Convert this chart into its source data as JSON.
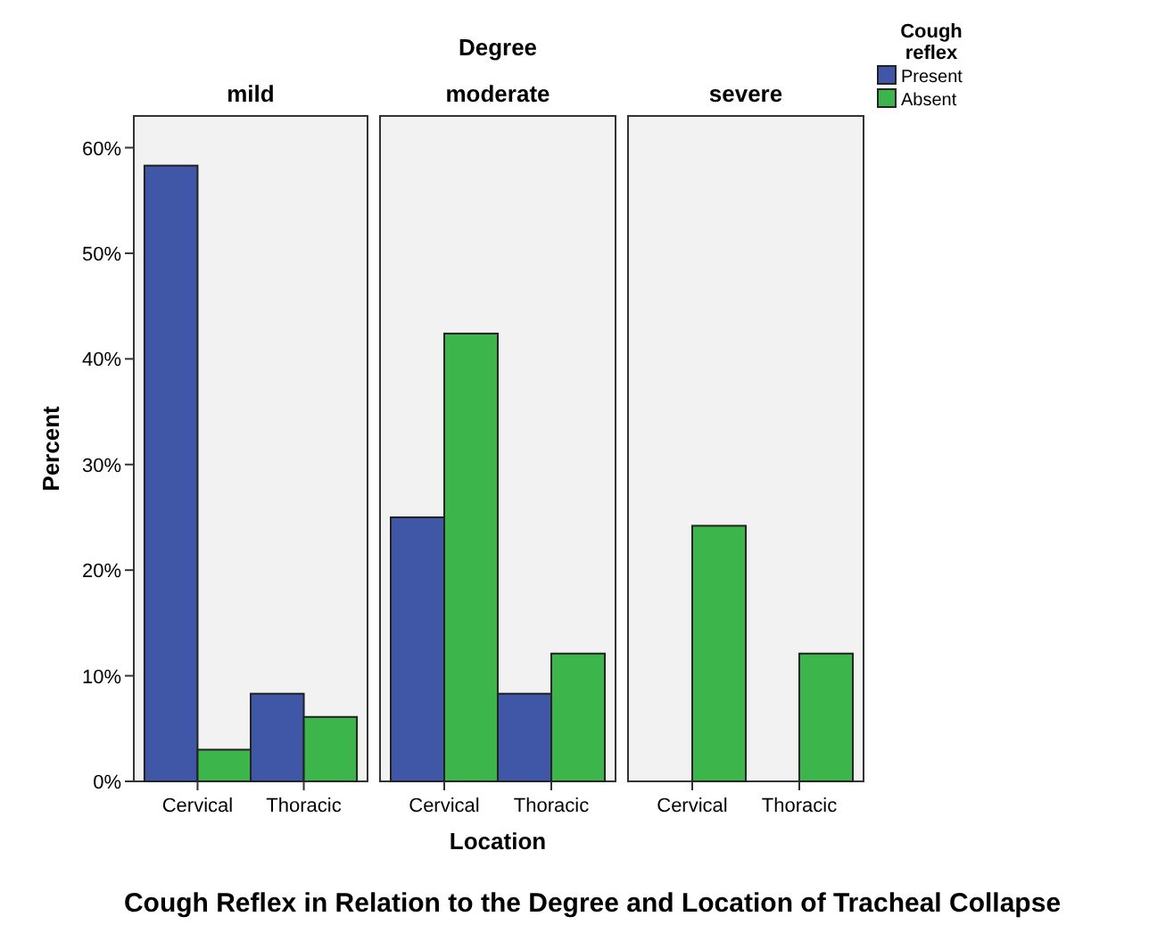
{
  "chart_data": [
    {
      "type": "bar",
      "title": "mild",
      "ylabel": "Percent",
      "categories": [
        "Cervical",
        "Thoracic"
      ],
      "series": [
        {
          "color": "#3f57a6",
          "values": [
            58.3,
            8.3
          ]
        },
        {
          "color": "#3cb54a",
          "values": [
            3.0,
            6.1
          ]
        }
      ],
      "ylim": [
        0,
        63
      ],
      "yticks": [
        {
          "value": 0,
          "label": "0%"
        },
        {
          "value": 10,
          "label": "10%"
        },
        {
          "value": 20,
          "label": "20%"
        },
        {
          "value": 30,
          "label": "30%"
        },
        {
          "value": 40,
          "label": "40%"
        },
        {
          "value": 50,
          "label": "50%"
        },
        {
          "value": 60,
          "label": "60%"
        }
      ],
      "grid": false
    },
    {
      "type": "bar",
      "title": "moderate",
      "xlabel": "Location",
      "annotations": [
        "Degree",
        "Cough Reflex in Relation to the Degree and Location of Tracheal Collapse"
      ],
      "categories": [
        "Cervical",
        "Thoracic"
      ],
      "series": [
        {
          "color": "#3f57a6",
          "values": [
            25.0,
            8.3
          ]
        },
        {
          "color": "#3cb54a",
          "values": [
            42.4,
            12.1
          ]
        }
      ],
      "ylim": [
        0,
        63
      ],
      "tick_labels": "x",
      "grid": false
    },
    {
      "type": "bar",
      "title": "severe",
      "legend": "right",
      "legend_title": "Cough reflex",
      "categories": [
        "Cervical",
        "Thoracic"
      ],
      "series": [
        {
          "name": "Present",
          "color": "#3f57a6",
          "values": [
            0,
            0
          ]
        },
        {
          "name": "Absent",
          "color": "#3cb54a",
          "values": [
            24.2,
            12.1
          ]
        }
      ],
      "ylim": [
        0,
        63
      ],
      "tick_labels": "x",
      "grid": false
    }
  ]
}
